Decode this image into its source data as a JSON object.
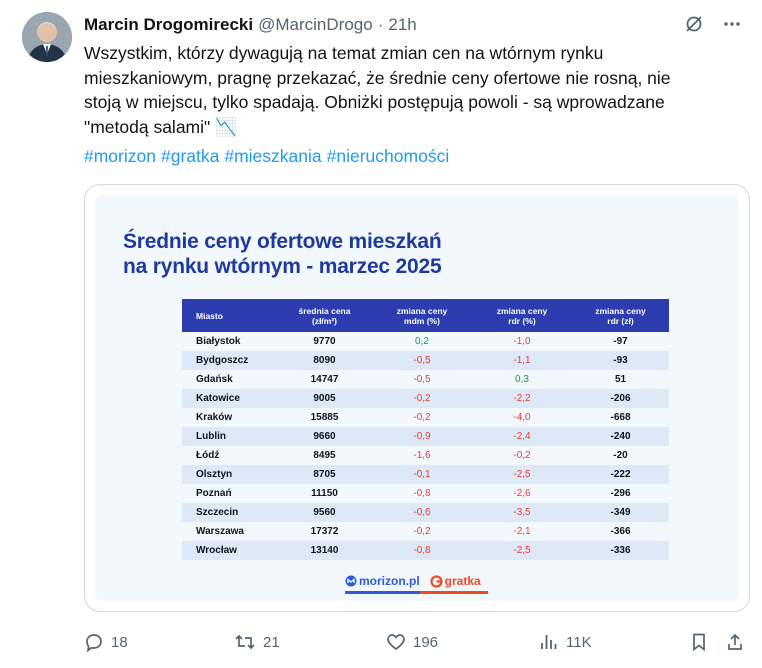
{
  "author": {
    "name": "Marcin Drogomirecki",
    "handle": "@MarcinDrogo",
    "time": "21h"
  },
  "tweet": {
    "lines": [
      "Wszystkim, którzy dywagują na temat zmian cen na wtórnym rynku",
      "mieszkaniowym, pragnę przekazać, że średnie ceny ofertowe nie rosną, nie",
      "stoją w miejscu, tylko spadają. Obniżki postępują powoli - są wprowadzane",
      "\"metodą salami\" 📉"
    ],
    "hashtags": [
      "#morizon",
      "#gratka",
      "#mieszkania",
      "#nieruchomości"
    ]
  },
  "card": {
    "title_line1": "Średnie ceny ofertowe mieszkań",
    "title_line2": "na rynku wtórnym - marzec 2025",
    "headers": {
      "city": "Miasto",
      "price_a": "średnia cena",
      "price_b": "(zł/m²)",
      "mdm_a": "zmiana ceny",
      "mdm_b": "mdm (%)",
      "rdrp_a": "zmiana ceny",
      "rdrp_b": "rdr (%)",
      "rdrz_a": "zmiana ceny",
      "rdrz_b": "rdr (zł)"
    },
    "rows": [
      {
        "city": "Białystok",
        "price": "9770",
        "mdm": "0,2",
        "rdr_pct": "-1,0",
        "rdr_zl": "-97"
      },
      {
        "city": "Bydgoszcz",
        "price": "8090",
        "mdm": "-0,5",
        "rdr_pct": "-1,1",
        "rdr_zl": "-93"
      },
      {
        "city": "Gdańsk",
        "price": "14747",
        "mdm": "-0,5",
        "rdr_pct": "0,3",
        "rdr_zl": "51"
      },
      {
        "city": "Katowice",
        "price": "9005",
        "mdm": "-0,2",
        "rdr_pct": "-2,2",
        "rdr_zl": "-206"
      },
      {
        "city": "Kraków",
        "price": "15885",
        "mdm": "-0,2",
        "rdr_pct": "-4,0",
        "rdr_zl": "-668"
      },
      {
        "city": "Lublin",
        "price": "9660",
        "mdm": "-0,9",
        "rdr_pct": "-2,4",
        "rdr_zl": "-240"
      },
      {
        "city": "Łódź",
        "price": "8495",
        "mdm": "-1,6",
        "rdr_pct": "-0,2",
        "rdr_zl": "-20"
      },
      {
        "city": "Olsztyn",
        "price": "8705",
        "mdm": "-0,1",
        "rdr_pct": "-2,5",
        "rdr_zl": "-222"
      },
      {
        "city": "Poznań",
        "price": "11150",
        "mdm": "-0,8",
        "rdr_pct": "-2,6",
        "rdr_zl": "-296"
      },
      {
        "city": "Szczecin",
        "price": "9560",
        "mdm": "-0,6",
        "rdr_pct": "-3,5",
        "rdr_zl": "-349"
      },
      {
        "city": "Warszawa",
        "price": "17372",
        "mdm": "-0,2",
        "rdr_pct": "-2,1",
        "rdr_zl": "-366"
      },
      {
        "city": "Wrocław",
        "price": "13140",
        "mdm": "-0,8",
        "rdr_pct": "-2,5",
        "rdr_zl": "-336"
      }
    ],
    "logo_morizon": "morizon.pl",
    "logo_gratka": "gratka",
    "colors": {
      "title": "#1f3a9c",
      "header_bg": "#2d3db0",
      "negative": "#ef3b2c",
      "positive": "#1d9a3a",
      "morizon": "#2d5ae0",
      "gratka": "#ef4a23"
    }
  },
  "actions": {
    "replies": "18",
    "reposts": "21",
    "likes": "196",
    "views": "11K"
  },
  "icons": [
    "grok-icon",
    "more-icon",
    "reply-icon",
    "repost-icon",
    "like-icon",
    "views-icon",
    "bookmark-icon",
    "share-icon"
  ]
}
